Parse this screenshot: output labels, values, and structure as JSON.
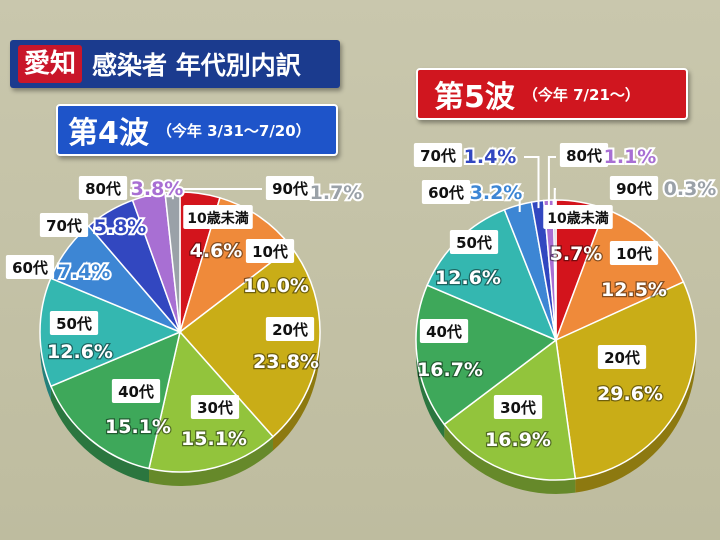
{
  "header": {
    "prefecture_badge": "愛知",
    "title": "感染者 年代別内訳"
  },
  "colors": {
    "wave4_bar": "#1e54c9",
    "wave5_bar": "#d0161f",
    "badge": "#c9162a"
  },
  "chart_data": [
    {
      "type": "pie",
      "title": "第4波",
      "subtitle": "（今年 3/31〜7/20）",
      "unit": "%",
      "categories": [
        "10歳未満",
        "10代",
        "20代",
        "30代",
        "40代",
        "50代",
        "60代",
        "70代",
        "80代",
        "90代"
      ],
      "values": [
        4.6,
        10.0,
        23.8,
        15.1,
        15.1,
        12.6,
        7.4,
        5.8,
        3.8,
        1.7
      ],
      "value_labels": [
        "4.6%",
        "10.0%",
        "23.8%",
        "15.1%",
        "15.1%",
        "12.6%",
        "7.4%",
        "5.8%",
        "3.8%",
        "1.7%"
      ],
      "colors": [
        "#d3141c",
        "#ef8a3a",
        "#c9ad17",
        "#92c43c",
        "#3ea85a",
        "#34b7b0",
        "#3d86d4",
        "#3247c0",
        "#a86fd3",
        "#9aa1a8"
      ]
    },
    {
      "type": "pie",
      "title": "第5波",
      "subtitle": "（今年 7/21〜）",
      "unit": "%",
      "categories": [
        "10歳未満",
        "10代",
        "20代",
        "30代",
        "40代",
        "50代",
        "60代",
        "70代",
        "80代",
        "90代"
      ],
      "values": [
        5.7,
        12.5,
        29.6,
        16.9,
        16.7,
        12.6,
        3.2,
        1.4,
        1.1,
        0.3
      ],
      "value_labels": [
        "5.7%",
        "12.5%",
        "29.6%",
        "16.9%",
        "16.7%",
        "12.6%",
        "3.2%",
        "1.4%",
        "1.1%",
        "0.3%"
      ],
      "colors": [
        "#d3141c",
        "#ef8a3a",
        "#c9ad17",
        "#92c43c",
        "#3ea85a",
        "#34b7b0",
        "#3d86d4",
        "#3247c0",
        "#a86fd3",
        "#9aa1a8"
      ]
    }
  ]
}
